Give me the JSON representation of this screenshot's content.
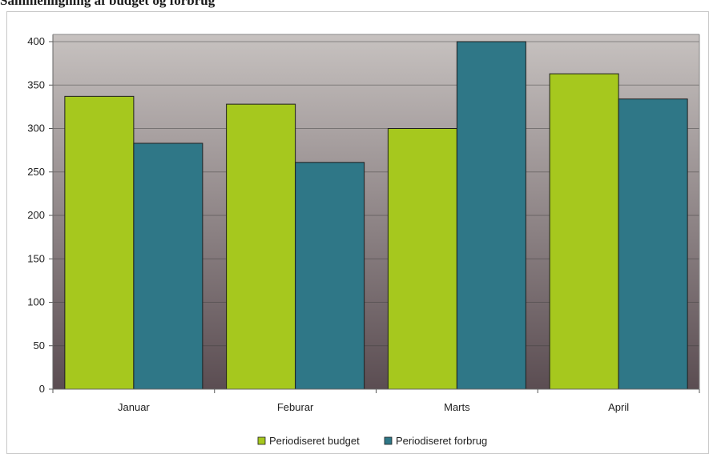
{
  "page": {
    "heading": "Sammenligning af budget og forbrug"
  },
  "chart_data": {
    "type": "bar",
    "title": "",
    "xlabel": "",
    "ylabel": "",
    "categories": [
      "Januar",
      "Feburar",
      "Marts",
      "April"
    ],
    "ylim": [
      0,
      400
    ],
    "yticks": [
      0,
      50,
      100,
      150,
      200,
      250,
      300,
      350,
      400
    ],
    "grid": true,
    "legend_position": "bottom",
    "series": [
      {
        "name": "Periodiseret budget",
        "color": "#a6c81e",
        "values": [
          337,
          328,
          300,
          363
        ]
      },
      {
        "name": "Periodiseret forbrug",
        "color": "#2f7787",
        "values": [
          283,
          261,
          400,
          334
        ]
      }
    ],
    "plot_background": [
      "#c7c2c0",
      "#5b4d52"
    ]
  }
}
